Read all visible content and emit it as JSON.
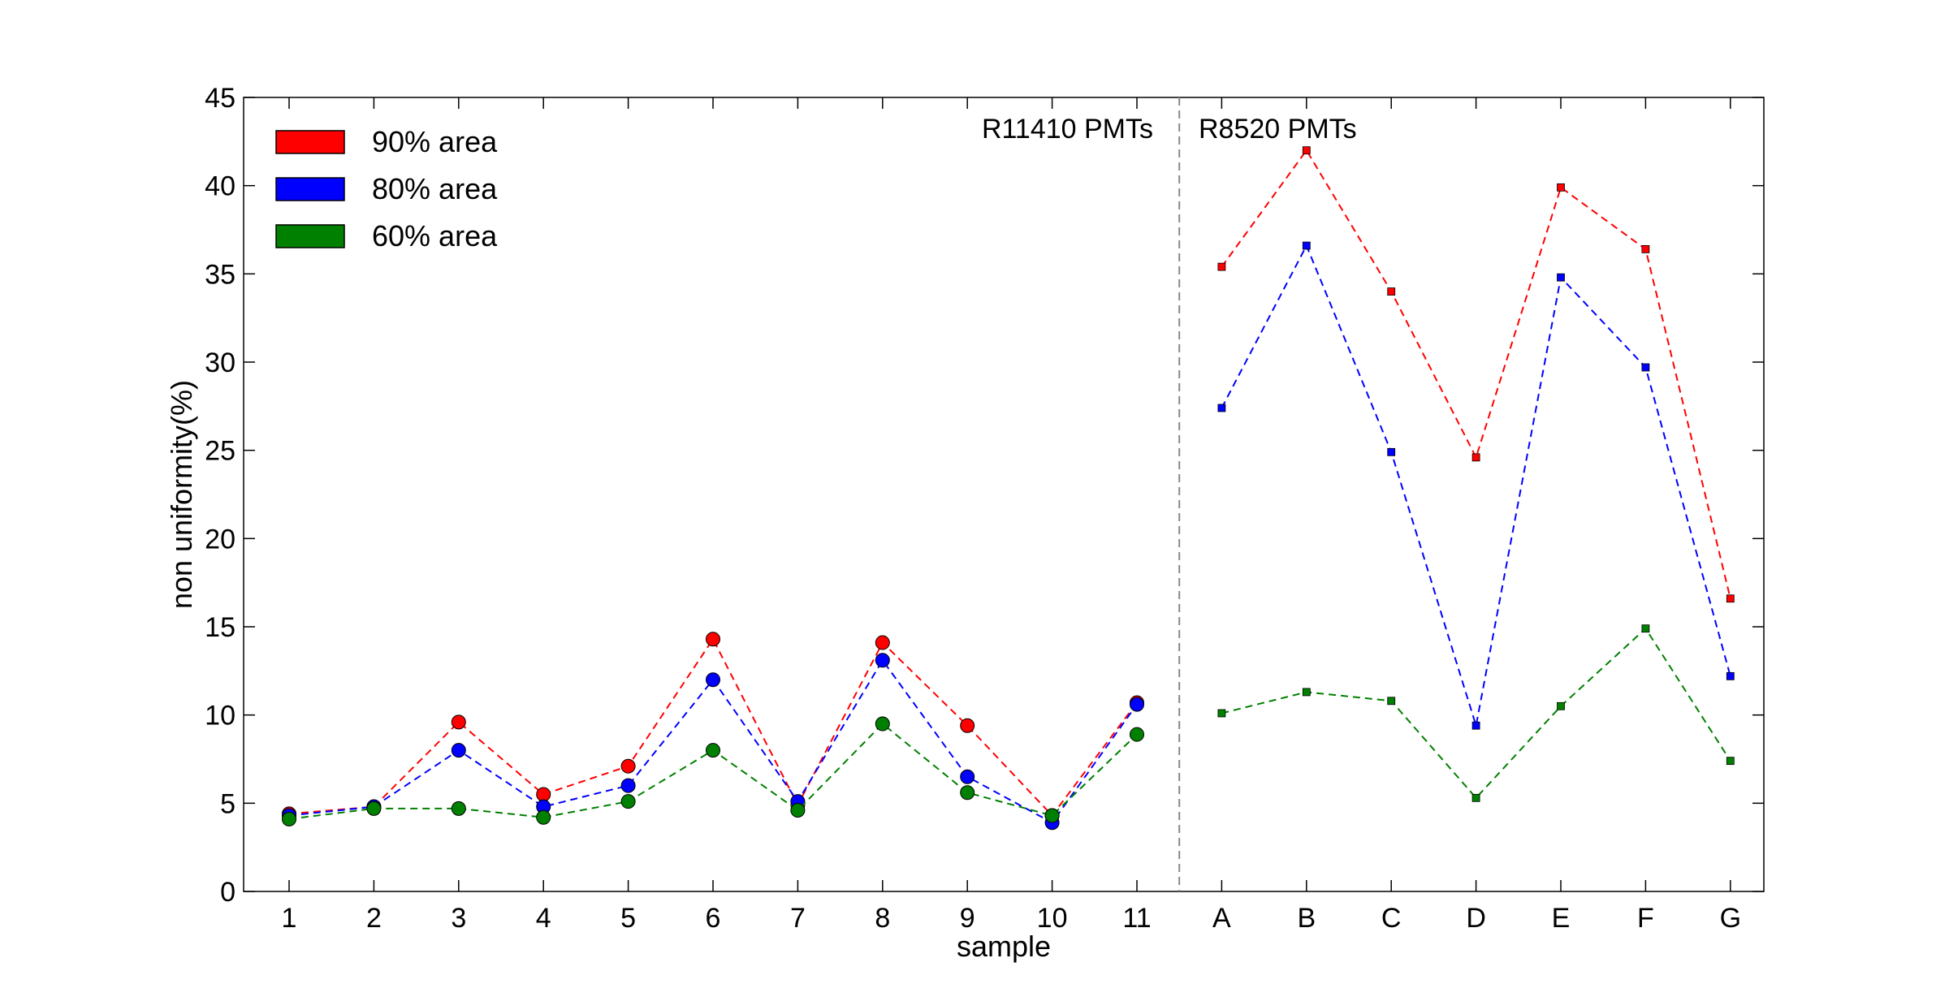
{
  "chart_data": {
    "type": "line",
    "xlabel": "sample",
    "ylabel": "non uniformity(%)",
    "ylim": [
      0,
      45
    ],
    "yticks": [
      0,
      5,
      10,
      15,
      20,
      25,
      30,
      35,
      40,
      45
    ],
    "categories": [
      "1",
      "2",
      "3",
      "4",
      "5",
      "6",
      "7",
      "8",
      "9",
      "10",
      "11",
      "A",
      "B",
      "C",
      "D",
      "E",
      "F",
      "G"
    ],
    "grid": false,
    "legend_position": "top-left",
    "groups": [
      {
        "label": "R11410 PMTs",
        "categories": [
          "1",
          "2",
          "3",
          "4",
          "5",
          "6",
          "7",
          "8",
          "9",
          "10",
          "11"
        ],
        "marker": "circle"
      },
      {
        "label": "R8520 PMTs",
        "categories": [
          "A",
          "B",
          "C",
          "D",
          "E",
          "F",
          "G"
        ],
        "marker": "square"
      }
    ],
    "series": [
      {
        "name": "90% area",
        "color": "#ff0000",
        "values": [
          4.4,
          4.8,
          9.6,
          5.5,
          7.1,
          14.3,
          4.9,
          14.1,
          9.4,
          4.3,
          10.7,
          35.4,
          42.0,
          34.0,
          24.6,
          39.9,
          36.4,
          16.6
        ]
      },
      {
        "name": "80% area",
        "color": "#0000ff",
        "values": [
          4.3,
          4.8,
          8.0,
          4.8,
          6.0,
          12.0,
          5.1,
          13.1,
          6.5,
          3.9,
          10.6,
          27.4,
          36.6,
          24.9,
          9.4,
          34.8,
          29.7,
          12.2
        ]
      },
      {
        "name": "60% area",
        "color": "#008000",
        "values": [
          4.1,
          4.7,
          4.7,
          4.2,
          5.1,
          8.0,
          4.6,
          9.5,
          5.6,
          4.3,
          8.9,
          10.1,
          11.3,
          10.8,
          5.3,
          10.5,
          14.9,
          7.4
        ]
      }
    ]
  }
}
